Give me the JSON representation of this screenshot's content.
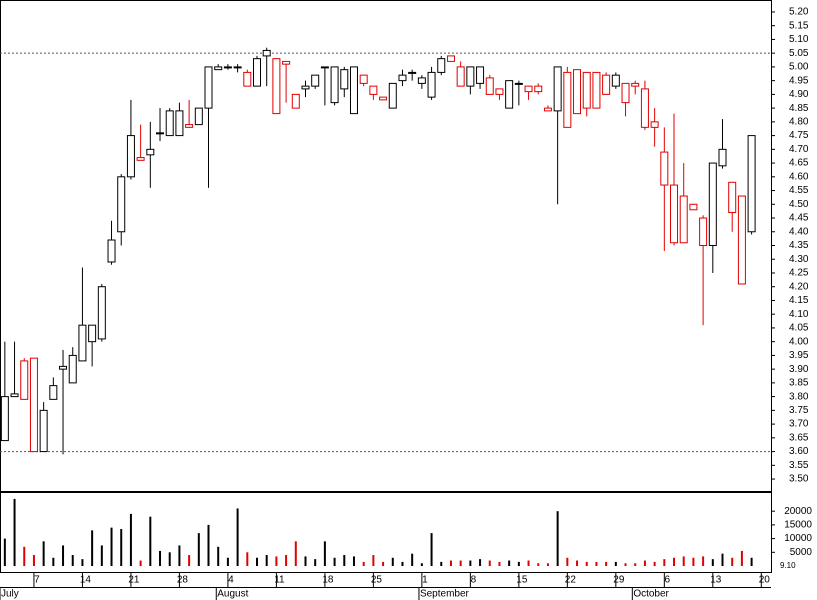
{
  "chart_data": {
    "type": "candlestick",
    "open": [
      3.64,
      3.8,
      3.93,
      3.94,
      3.6,
      3.79,
      3.9,
      3.85,
      3.93,
      4.0,
      4.01,
      4.29,
      4.4,
      4.6,
      4.67,
      4.68,
      4.76,
      4.75,
      4.75,
      4.79,
      4.79,
      4.85,
      4.99,
      5.0,
      5.0,
      4.98,
      4.93,
      5.04,
      5.03,
      5.02,
      4.9,
      4.92,
      4.93,
      5.0,
      4.87,
      4.92,
      4.83,
      4.97,
      4.93,
      4.89,
      4.85,
      4.95,
      4.98,
      4.94,
      4.89,
      4.98,
      5.04,
      5.0,
      4.93,
      4.94,
      4.96,
      4.92,
      4.85,
      4.94,
      4.93,
      4.93,
      4.85,
      4.84,
      4.98,
      4.99,
      4.98,
      4.98,
      4.97,
      4.93,
      4.94,
      4.94,
      4.92,
      4.8,
      4.69,
      4.57,
      4.53,
      4.5,
      4.45,
      4.35,
      4.64,
      4.58,
      4.53,
      4.4
    ],
    "high": [
      4.0,
      4.0,
      3.94,
      3.94,
      3.78,
      3.87,
      3.97,
      3.98,
      4.27,
      4.06,
      4.21,
      4.44,
      4.61,
      4.88,
      4.79,
      4.8,
      4.85,
      4.85,
      4.87,
      4.88,
      4.85,
      5.0,
      5.01,
      5.01,
      5.01,
      4.99,
      5.04,
      5.07,
      5.03,
      5.02,
      4.9,
      4.95,
      4.97,
      5.0,
      5.0,
      5.0,
      5.0,
      4.97,
      4.93,
      4.89,
      4.94,
      4.99,
      4.99,
      4.97,
      5.0,
      5.04,
      5.04,
      5.02,
      5.0,
      5.0,
      4.97,
      4.92,
      4.95,
      4.95,
      4.93,
      4.94,
      4.86,
      5.0,
      5.0,
      4.99,
      4.98,
      4.98,
      4.98,
      4.98,
      4.94,
      4.95,
      4.95,
      4.85,
      4.78,
      4.83,
      4.65,
      4.5,
      4.46,
      4.65,
      4.81,
      4.58,
      4.53,
      4.75
    ],
    "low": [
      3.64,
      3.8,
      3.79,
      3.6,
      3.6,
      3.79,
      3.59,
      3.85,
      3.93,
      3.91,
      4.0,
      4.28,
      4.35,
      4.59,
      4.66,
      4.56,
      4.73,
      4.75,
      4.75,
      4.78,
      4.79,
      4.56,
      4.99,
      4.99,
      4.98,
      4.93,
      4.93,
      4.93,
      4.83,
      4.87,
      4.85,
      4.89,
      4.92,
      4.86,
      4.86,
      4.89,
      4.83,
      4.93,
      4.88,
      4.88,
      4.85,
      4.93,
      4.95,
      4.92,
      4.88,
      4.97,
      5.02,
      4.93,
      4.9,
      4.92,
      4.9,
      4.88,
      4.85,
      4.86,
      4.88,
      4.9,
      4.84,
      4.5,
      4.78,
      4.83,
      4.82,
      4.85,
      4.9,
      4.92,
      4.82,
      4.9,
      4.77,
      4.71,
      4.33,
      4.35,
      4.36,
      4.48,
      4.06,
      4.25,
      4.63,
      4.4,
      4.21,
      4.39
    ],
    "close": [
      3.8,
      3.81,
      3.79,
      3.6,
      3.75,
      3.84,
      3.91,
      3.95,
      4.06,
      4.06,
      4.2,
      4.37,
      4.6,
      4.75,
      4.66,
      4.7,
      4.76,
      4.84,
      4.84,
      4.78,
      4.85,
      5.0,
      5.0,
      5.0,
      5.0,
      4.93,
      5.03,
      5.06,
      4.83,
      5.01,
      4.85,
      4.93,
      4.97,
      5.0,
      5.0,
      4.99,
      5.0,
      4.94,
      4.9,
      4.88,
      4.94,
      4.97,
      4.98,
      4.96,
      4.98,
      5.03,
      5.02,
      4.93,
      5.0,
      5.0,
      4.9,
      4.9,
      4.95,
      4.94,
      4.91,
      4.91,
      4.84,
      5.0,
      4.78,
      4.83,
      4.85,
      4.85,
      4.9,
      4.97,
      4.87,
      4.93,
      4.78,
      4.78,
      4.57,
      4.36,
      4.36,
      4.48,
      4.35,
      4.65,
      4.7,
      4.47,
      4.21,
      4.75
    ],
    "volume": [
      10000,
      24500,
      7000,
      4000,
      9000,
      3000,
      7500,
      4000,
      2500,
      13000,
      7500,
      14000,
      13500,
      19000,
      2000,
      18000,
      5500,
      5000,
      7500,
      4000,
      12000,
      15000,
      7000,
      3000,
      21000,
      5000,
      3000,
      4000,
      3500,
      4000,
      9000,
      3500,
      2500,
      9000,
      3000,
      4000,
      3500,
      1500,
      4000,
      1500,
      3000,
      1500,
      4500,
      1000,
      12000,
      1500,
      2000,
      2000,
      2000,
      2500,
      2000,
      1500,
      2000,
      1500,
      2000,
      1000,
      1000,
      20000,
      3000,
      2000,
      1500,
      1500,
      1500,
      1500,
      1000,
      1000,
      2000,
      1500,
      2500,
      3000,
      3500,
      3000,
      3500,
      2500,
      4500,
      3000,
      5500,
      3000
    ],
    "up_color": "#000000",
    "down_color": "#e00000",
    "reference_lines": [
      5.05,
      3.6
    ],
    "xlim": [
      -0.5,
      79
    ],
    "xticks": [
      {
        "value": 3,
        "label": "7"
      },
      {
        "value": 8,
        "label": "14"
      },
      {
        "value": 13,
        "label": "21"
      },
      {
        "value": 18,
        "label": "28"
      },
      {
        "value": 23,
        "label": "4"
      },
      {
        "value": 28,
        "label": "11"
      },
      {
        "value": 33,
        "label": "18"
      },
      {
        "value": 38,
        "label": "25"
      },
      {
        "value": 43,
        "label": "1"
      },
      {
        "value": 48,
        "label": "8"
      },
      {
        "value": 53,
        "label": "15"
      },
      {
        "value": 58,
        "label": "22"
      },
      {
        "value": 63,
        "label": "29"
      },
      {
        "value": 68,
        "label": "6"
      },
      {
        "value": 73,
        "label": "13"
      },
      {
        "value": 78,
        "label": "20"
      }
    ],
    "month_ticks": [
      {
        "value": -0.5,
        "label": "July"
      },
      {
        "value": 21.8,
        "label": "August"
      },
      {
        "value": 42.7,
        "label": "September"
      },
      {
        "value": 64.7,
        "label": "October"
      }
    ],
    "ylim": [
      3.4565,
      5.2435
    ],
    "yticks": [
      {
        "value": 3.5,
        "label": "3.50"
      },
      {
        "value": 3.55,
        "label": "3.55"
      },
      {
        "value": 3.6,
        "label": "3.60"
      },
      {
        "value": 3.65,
        "label": "3.65"
      },
      {
        "value": 3.7,
        "label": "3.70"
      },
      {
        "value": 3.75,
        "label": "3.75"
      },
      {
        "value": 3.8,
        "label": "3.80"
      },
      {
        "value": 3.85,
        "label": "3.85"
      },
      {
        "value": 3.9,
        "label": "3.90"
      },
      {
        "value": 3.95,
        "label": "3.95"
      },
      {
        "value": 4.0,
        "label": "4.00"
      },
      {
        "value": 4.05,
        "label": "4.05"
      },
      {
        "value": 4.1,
        "label": "4.10"
      },
      {
        "value": 4.15,
        "label": "4.15"
      },
      {
        "value": 4.2,
        "label": "4.20"
      },
      {
        "value": 4.25,
        "label": "4.25"
      },
      {
        "value": 4.3,
        "label": "4.30"
      },
      {
        "value": 4.35,
        "label": "4.35"
      },
      {
        "value": 4.4,
        "label": "4.40"
      },
      {
        "value": 4.45,
        "label": "4.45"
      },
      {
        "value": 4.5,
        "label": "4.50"
      },
      {
        "value": 4.55,
        "label": "4.55"
      },
      {
        "value": 4.6,
        "label": "4.60"
      },
      {
        "value": 4.65,
        "label": "4.65"
      },
      {
        "value": 4.7,
        "label": "4.70"
      },
      {
        "value": 4.75,
        "label": "4.75"
      },
      {
        "value": 4.8,
        "label": "4.80"
      },
      {
        "value": 4.85,
        "label": "4.85"
      },
      {
        "value": 4.9,
        "label": "4.90"
      },
      {
        "value": 4.95,
        "label": "4.95"
      },
      {
        "value": 5.0,
        "label": "5.00"
      },
      {
        "value": 5.05,
        "label": "5.05"
      },
      {
        "value": 5.1,
        "label": "5.10"
      },
      {
        "value": 5.15,
        "label": "5.15"
      },
      {
        "value": 5.2,
        "label": "5.20"
      }
    ],
    "vlim": [
      0,
      27000
    ],
    "vticks": [
      5000,
      10000,
      15000,
      20000
    ],
    "corner_label": "9.10"
  }
}
